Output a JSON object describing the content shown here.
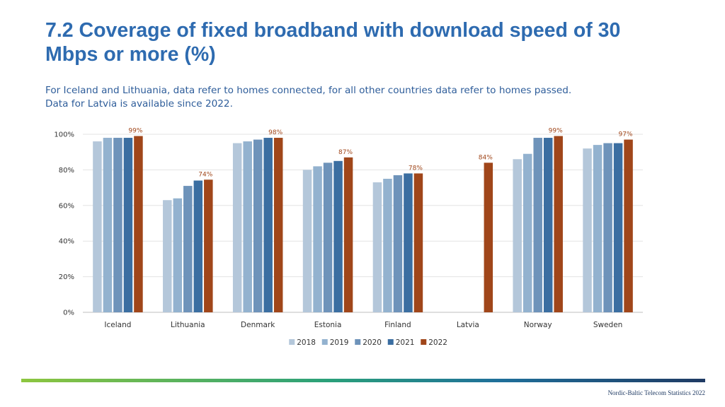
{
  "page": {
    "title": "7.2 Coverage of fixed broadband with download speed of 30 Mbps or more (%)",
    "subtitle_line1": "For Iceland and Lithuania, data refer to homes connected, for all other countries data refer to homes passed.",
    "subtitle_line2": "Data for Latvia is available since 2022.",
    "footer": "Nordic-Baltic Telecom Statistics 2022"
  },
  "colors": {
    "title": "#2e6bb0",
    "series": [
      "#b4c7da",
      "#93b2cf",
      "#6e93ba",
      "#3b6ea1",
      "#a0461a"
    ],
    "footer_gradient": [
      "#8dc63f",
      "#1f3a63"
    ]
  },
  "chart_data": {
    "type": "bar",
    "categories": [
      "Iceland",
      "Lithuania",
      "Denmark",
      "Estonia",
      "Finland",
      "Latvia",
      "Norway",
      "Sweden"
    ],
    "series": [
      {
        "name": "2018",
        "values": [
          96,
          63,
          95,
          80,
          73,
          null,
          86,
          92
        ]
      },
      {
        "name": "2019",
        "values": [
          98,
          64,
          96,
          82,
          75,
          null,
          89,
          94
        ]
      },
      {
        "name": "2020",
        "values": [
          98,
          71,
          97,
          84,
          77,
          null,
          98,
          95
        ]
      },
      {
        "name": "2021",
        "values": [
          98,
          74,
          98,
          85,
          78,
          null,
          98,
          95
        ]
      },
      {
        "name": "2022",
        "values": [
          99,
          74.5,
          98,
          87,
          78,
          84,
          99,
          97
        ]
      }
    ],
    "data_labels": [
      "99%",
      "74%",
      "98%",
      "87%",
      "78%",
      "84%",
      "99%",
      "97%"
    ],
    "y_ticks": [
      "0%",
      "20%",
      "40%",
      "60%",
      "80%",
      "100%"
    ],
    "ylim": [
      0,
      100
    ],
    "grid": true,
    "legend_position": "bottom",
    "xlabel": "",
    "ylabel": ""
  }
}
